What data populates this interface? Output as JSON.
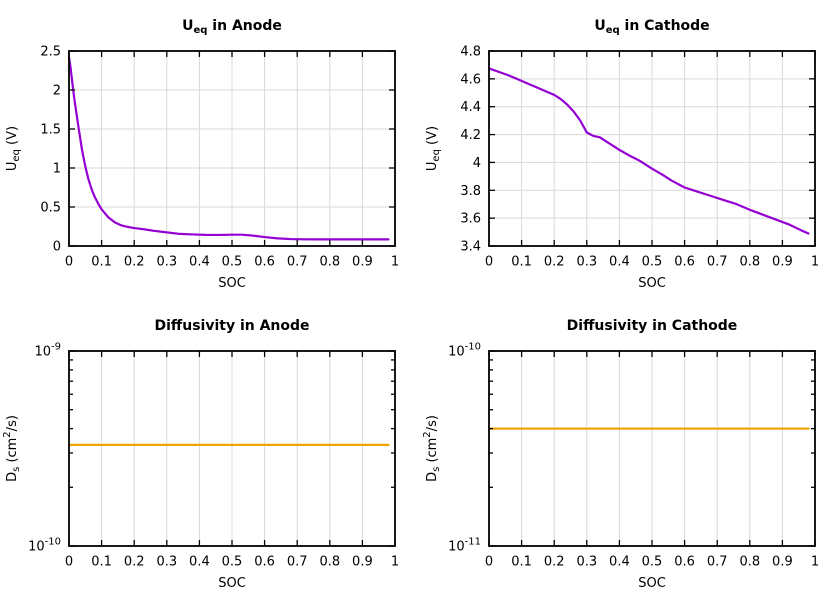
{
  "figure": {
    "background": "#ffffff",
    "description": "Battery half-cell equilibrium potential and solid diffusivity versus state of charge, four-panel figure"
  },
  "colors": {
    "ocv_line": "#9400d3",
    "diffusivity_line": "#f0a202",
    "grid": "#d9d9d9",
    "frame": "#000000",
    "text": "#000000"
  },
  "chart_data": [
    {
      "id": "ueq-anode",
      "type": "line",
      "title": [
        {
          "t": "U"
        },
        {
          "t": "eq",
          "s": "sub"
        },
        {
          "t": " in Anode"
        }
      ],
      "xlabel": "SOC",
      "ylabel": [
        {
          "t": "U"
        },
        {
          "t": "eq",
          "s": "sub"
        },
        {
          "t": " (V)"
        }
      ],
      "xlim": [
        0,
        1
      ],
      "ylim": [
        0,
        2.5
      ],
      "yscale": "linear",
      "grid": true,
      "legend": "none",
      "line_color": "#9400d3",
      "xticks": {
        "values": [
          0,
          0.1,
          0.2,
          0.3,
          0.4,
          0.5,
          0.6,
          0.7,
          0.8,
          0.9,
          1
        ],
        "labels": [
          "0",
          "0.1",
          "0.2",
          "0.3",
          "0.4",
          "0.5",
          "0.6",
          "0.7",
          "0.8",
          "0.9",
          "1"
        ]
      },
      "yticks": {
        "values": [
          0,
          0.5,
          1,
          1.5,
          2,
          2.5
        ],
        "labels": [
          "0",
          "0.5",
          "1",
          "1.5",
          "2",
          "2.5"
        ]
      },
      "yminor": [],
      "points": {
        "x": [
          0,
          0.005,
          0.01,
          0.015,
          0.02,
          0.03,
          0.04,
          0.05,
          0.06,
          0.07,
          0.08,
          0.09,
          0.1,
          0.12,
          0.14,
          0.16,
          0.18,
          0.2,
          0.23,
          0.26,
          0.3,
          0.34,
          0.38,
          0.42,
          0.46,
          0.5,
          0.53,
          0.56,
          0.6,
          0.64,
          0.68,
          0.72,
          0.76,
          0.8,
          0.85,
          0.9,
          0.95,
          0.98
        ],
        "y": [
          2.42,
          2.28,
          2.1,
          1.93,
          1.78,
          1.5,
          1.23,
          1.02,
          0.85,
          0.72,
          0.62,
          0.54,
          0.47,
          0.37,
          0.305,
          0.265,
          0.245,
          0.23,
          0.215,
          0.195,
          0.175,
          0.155,
          0.148,
          0.143,
          0.142,
          0.145,
          0.145,
          0.135,
          0.115,
          0.098,
          0.089,
          0.086,
          0.085,
          0.085,
          0.085,
          0.085,
          0.085,
          0.085
        ]
      }
    },
    {
      "id": "ueq-cathode",
      "type": "line",
      "title": [
        {
          "t": "U"
        },
        {
          "t": "eq",
          "s": "sub"
        },
        {
          "t": " in Cathode"
        }
      ],
      "xlabel": "SOC",
      "ylabel": [
        {
          "t": "U"
        },
        {
          "t": "eq",
          "s": "sub"
        },
        {
          "t": " (V)"
        }
      ],
      "xlim": [
        0,
        1
      ],
      "ylim": [
        3.4,
        4.8
      ],
      "yscale": "linear",
      "grid": true,
      "legend": "none",
      "line_color": "#9400d3",
      "xticks": {
        "values": [
          0,
          0.1,
          0.2,
          0.3,
          0.4,
          0.5,
          0.6,
          0.7,
          0.8,
          0.9,
          1
        ],
        "labels": [
          "0",
          "0.1",
          "0.2",
          "0.3",
          "0.4",
          "0.5",
          "0.6",
          "0.7",
          "0.8",
          "0.9",
          "1"
        ]
      },
      "yticks": {
        "values": [
          3.4,
          3.6,
          3.8,
          4,
          4.2,
          4.4,
          4.6,
          4.8
        ],
        "labels": [
          "3.4",
          "3.6",
          "3.8",
          "4",
          "4.2",
          "4.4",
          "4.6",
          "4.8"
        ]
      },
      "yminor": [],
      "points": {
        "x": [
          0,
          0.03,
          0.06,
          0.09,
          0.12,
          0.15,
          0.18,
          0.2,
          0.22,
          0.24,
          0.26,
          0.28,
          0.3,
          0.32,
          0.34,
          0.36,
          0.38,
          0.4,
          0.43,
          0.46,
          0.5,
          0.53,
          0.56,
          0.6,
          0.64,
          0.68,
          0.72,
          0.76,
          0.8,
          0.84,
          0.88,
          0.92,
          0.96,
          0.98
        ],
        "y": [
          4.675,
          4.65,
          4.625,
          4.595,
          4.565,
          4.535,
          4.505,
          4.485,
          4.455,
          4.415,
          4.365,
          4.3,
          4.215,
          4.19,
          4.18,
          4.15,
          4.12,
          4.09,
          4.05,
          4.015,
          3.955,
          3.915,
          3.87,
          3.82,
          3.79,
          3.76,
          3.73,
          3.7,
          3.66,
          3.625,
          3.59,
          3.555,
          3.51,
          3.49
        ]
      }
    },
    {
      "id": "diffusivity-anode",
      "type": "line",
      "title": [
        {
          "t": "Diffusivity in Anode"
        }
      ],
      "xlabel": "SOC",
      "ylabel": [
        {
          "t": "D"
        },
        {
          "t": "s",
          "s": "sub"
        },
        {
          "t": " (cm",
          "s": ""
        },
        {
          "t": "2",
          "s": "sup"
        },
        {
          "t": "/s)"
        }
      ],
      "xlim": [
        0,
        1
      ],
      "ylim": [
        1e-10,
        1e-09
      ],
      "yscale": "log",
      "grid": true,
      "legend": "none",
      "line_color": "#f0a202",
      "xticks": {
        "values": [
          0,
          0.1,
          0.2,
          0.3,
          0.4,
          0.5,
          0.6,
          0.7,
          0.8,
          0.9,
          1
        ],
        "labels": [
          "0",
          "0.1",
          "0.2",
          "0.3",
          "0.4",
          "0.5",
          "0.6",
          "0.7",
          "0.8",
          "0.9",
          "1"
        ]
      },
      "yticks": {
        "values": [
          1e-10,
          1e-09
        ],
        "labels": [
          [
            {
              "t": "10"
            },
            {
              "t": "-10",
              "s": "sup"
            }
          ],
          [
            {
              "t": "10"
            },
            {
              "t": "-9",
              "s": "sup"
            }
          ]
        ]
      },
      "yminor": [
        2e-10,
        3e-10,
        4e-10,
        5e-10,
        6e-10,
        7e-10,
        8e-10,
        9e-10
      ],
      "points": {
        "x": [
          0,
          0.98
        ],
        "y": [
          3.3e-10,
          3.3e-10
        ]
      }
    },
    {
      "id": "diffusivity-cathode",
      "type": "line",
      "title": [
        {
          "t": "Diffusivity in Cathode"
        }
      ],
      "xlabel": "SOC",
      "ylabel": [
        {
          "t": "D"
        },
        {
          "t": "s",
          "s": "sub"
        },
        {
          "t": " (cm",
          "s": ""
        },
        {
          "t": "2",
          "s": "sup"
        },
        {
          "t": "/s)"
        }
      ],
      "xlim": [
        0,
        1
      ],
      "ylim": [
        1e-11,
        1e-10
      ],
      "yscale": "log",
      "grid": true,
      "legend": "none",
      "line_color": "#f0a202",
      "xticks": {
        "values": [
          0,
          0.1,
          0.2,
          0.3,
          0.4,
          0.5,
          0.6,
          0.7,
          0.8,
          0.9,
          1
        ],
        "labels": [
          "0",
          "0.1",
          "0.2",
          "0.3",
          "0.4",
          "0.5",
          "0.6",
          "0.7",
          "0.8",
          "0.9",
          "1"
        ]
      },
      "yticks": {
        "values": [
          1e-11,
          1e-10
        ],
        "labels": [
          [
            {
              "t": "10"
            },
            {
              "t": "-11",
              "s": "sup"
            }
          ],
          [
            {
              "t": "10"
            },
            {
              "t": "-10",
              "s": "sup"
            }
          ]
        ]
      },
      "yminor": [
        2e-11,
        3e-11,
        4e-11,
        5e-11,
        6e-11,
        7e-11,
        8e-11,
        9e-11
      ],
      "points": {
        "x": [
          0,
          0.98
        ],
        "y": [
          4e-11,
          4e-11
        ]
      }
    }
  ]
}
